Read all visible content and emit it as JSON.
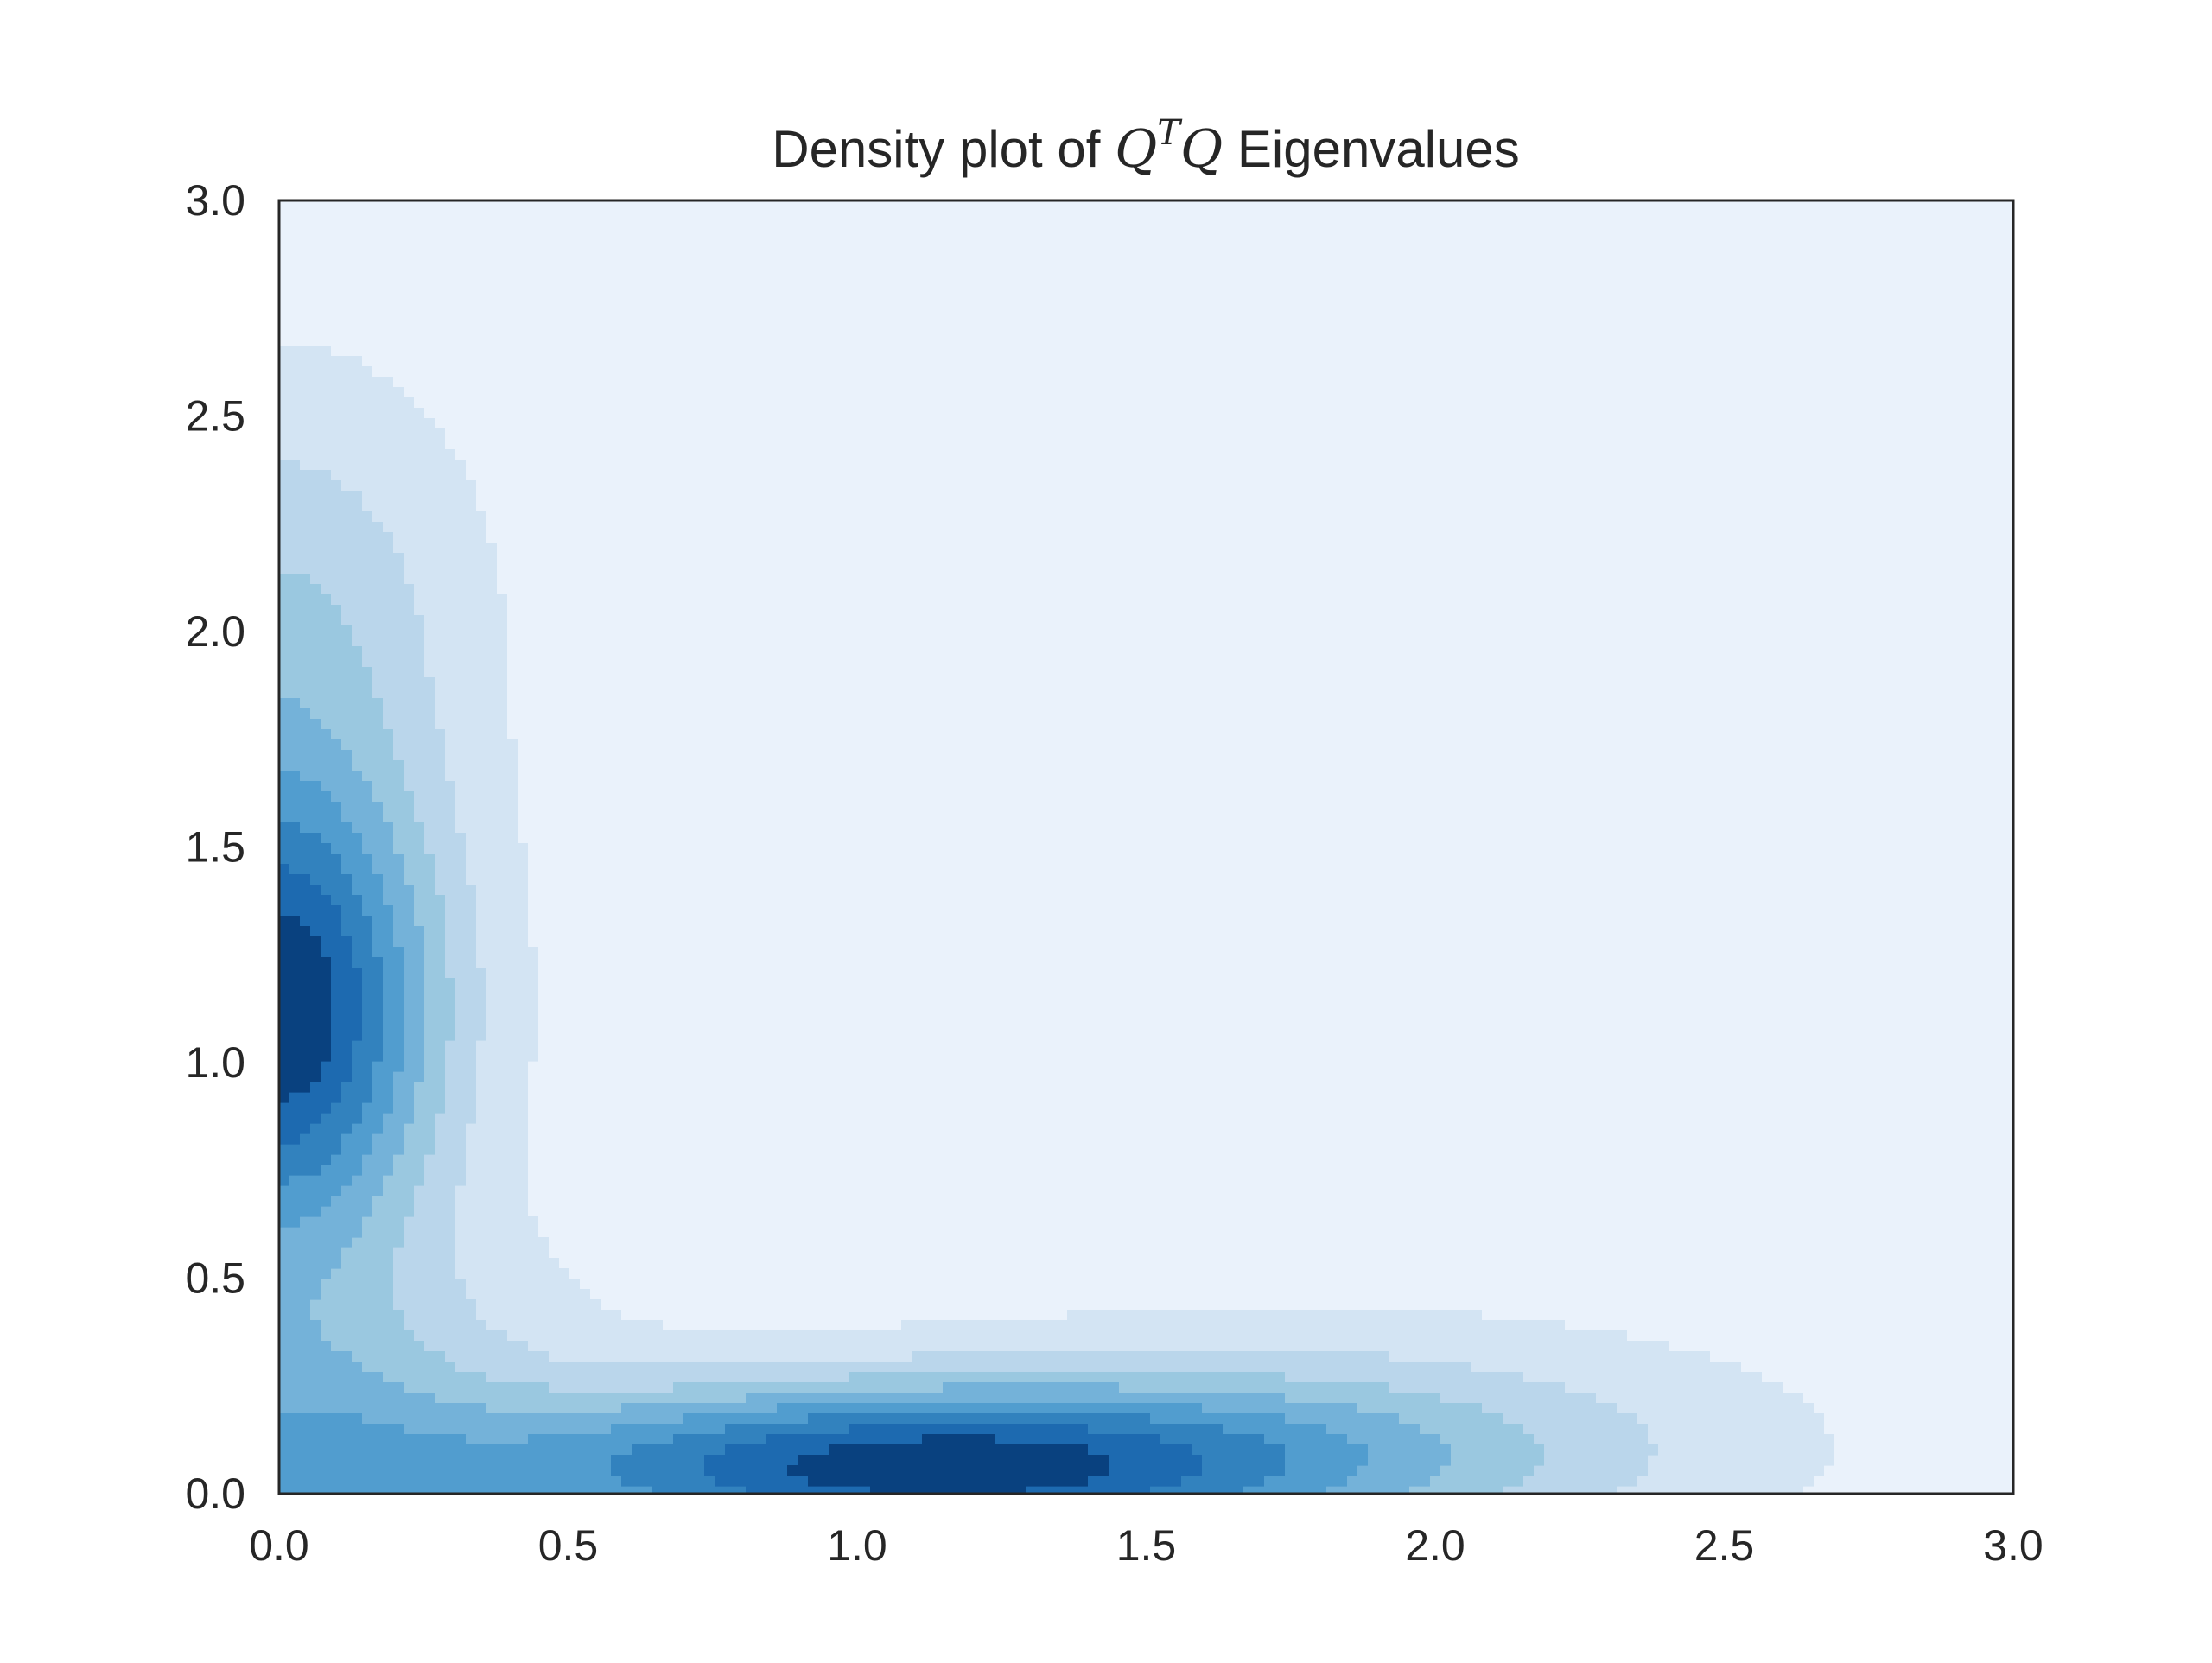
{
  "chart_data": {
    "type": "kde-contour",
    "title": {
      "prefix": "Density plot of ",
      "math_q1": "Q",
      "math_sup": "T",
      "math_q2": "Q",
      "suffix": " Eigenvalues"
    },
    "xlabel": "",
    "ylabel": "",
    "xlim": [
      0.0,
      3.0
    ],
    "ylim": [
      0.0,
      3.0
    ],
    "xticks": [
      "0.0",
      "0.5",
      "1.0",
      "1.5",
      "2.0",
      "2.5",
      "3.0"
    ],
    "yticks": [
      "0.0",
      "0.5",
      "1.0",
      "1.5",
      "2.0",
      "2.5",
      "3.0"
    ],
    "grid": false,
    "colormap": "Blues",
    "fill_levels": 9,
    "level_colors": [
      "#eaf2fb",
      "#d3e4f3",
      "#bad6eb",
      "#9ac8e0",
      "#74b2d9",
      "#519dcf",
      "#3282be",
      "#1d6ab0",
      "#09417f"
    ],
    "modes": [
      {
        "x": 0.05,
        "y": 1.12
      },
      {
        "x": 1.1,
        "y": 0.06
      }
    ]
  }
}
